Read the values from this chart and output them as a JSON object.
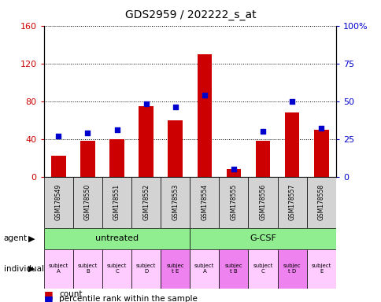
{
  "title": "GDS2959 / 202222_s_at",
  "samples": [
    "GSM178549",
    "GSM178550",
    "GSM178551",
    "GSM178552",
    "GSM178553",
    "GSM178554",
    "GSM178555",
    "GSM178556",
    "GSM178557",
    "GSM178558"
  ],
  "counts": [
    22,
    38,
    40,
    75,
    60,
    130,
    8,
    38,
    68,
    50
  ],
  "percentiles": [
    27,
    29,
    31,
    48,
    46,
    54,
    5,
    30,
    50,
    32
  ],
  "ylim_left": [
    0,
    160
  ],
  "ylim_right": [
    0,
    100
  ],
  "yticks_left": [
    0,
    40,
    80,
    120,
    160
  ],
  "yticks_right": [
    0,
    25,
    50,
    75,
    100
  ],
  "yticklabels_left": [
    "0",
    "40",
    "80",
    "120",
    "160"
  ],
  "yticklabels_right": [
    "0",
    "25",
    "50",
    "75",
    "100%"
  ],
  "agent_groups": [
    {
      "label": "untreated",
      "start": 0,
      "end": 5,
      "color": "#90ee90"
    },
    {
      "label": "G-CSF",
      "start": 5,
      "end": 10,
      "color": "#90ee90"
    }
  ],
  "individuals": [
    {
      "label": "subject\nA",
      "highlight": false
    },
    {
      "label": "subject\nB",
      "highlight": false
    },
    {
      "label": "subject\nC",
      "highlight": false
    },
    {
      "label": "subject\nD",
      "highlight": false
    },
    {
      "label": "subjec\nt E",
      "highlight": true
    },
    {
      "label": "subject\nA",
      "highlight": false
    },
    {
      "label": "subjec\nt B",
      "highlight": true
    },
    {
      "label": "subject\nC",
      "highlight": false
    },
    {
      "label": "subjec\nt D",
      "highlight": true
    },
    {
      "label": "subject\nE",
      "highlight": false
    }
  ],
  "bar_color": "#cc0000",
  "dot_color": "#0000cc",
  "bar_width": 0.5,
  "label_area_color": "#d3d3d3",
  "individual_highlight_color": "#ee82ee",
  "individual_normal_color": "#ffccff",
  "left_axis_color": "#cc0000",
  "right_axis_color": "#0000cc",
  "fig_bg": "#ffffff"
}
